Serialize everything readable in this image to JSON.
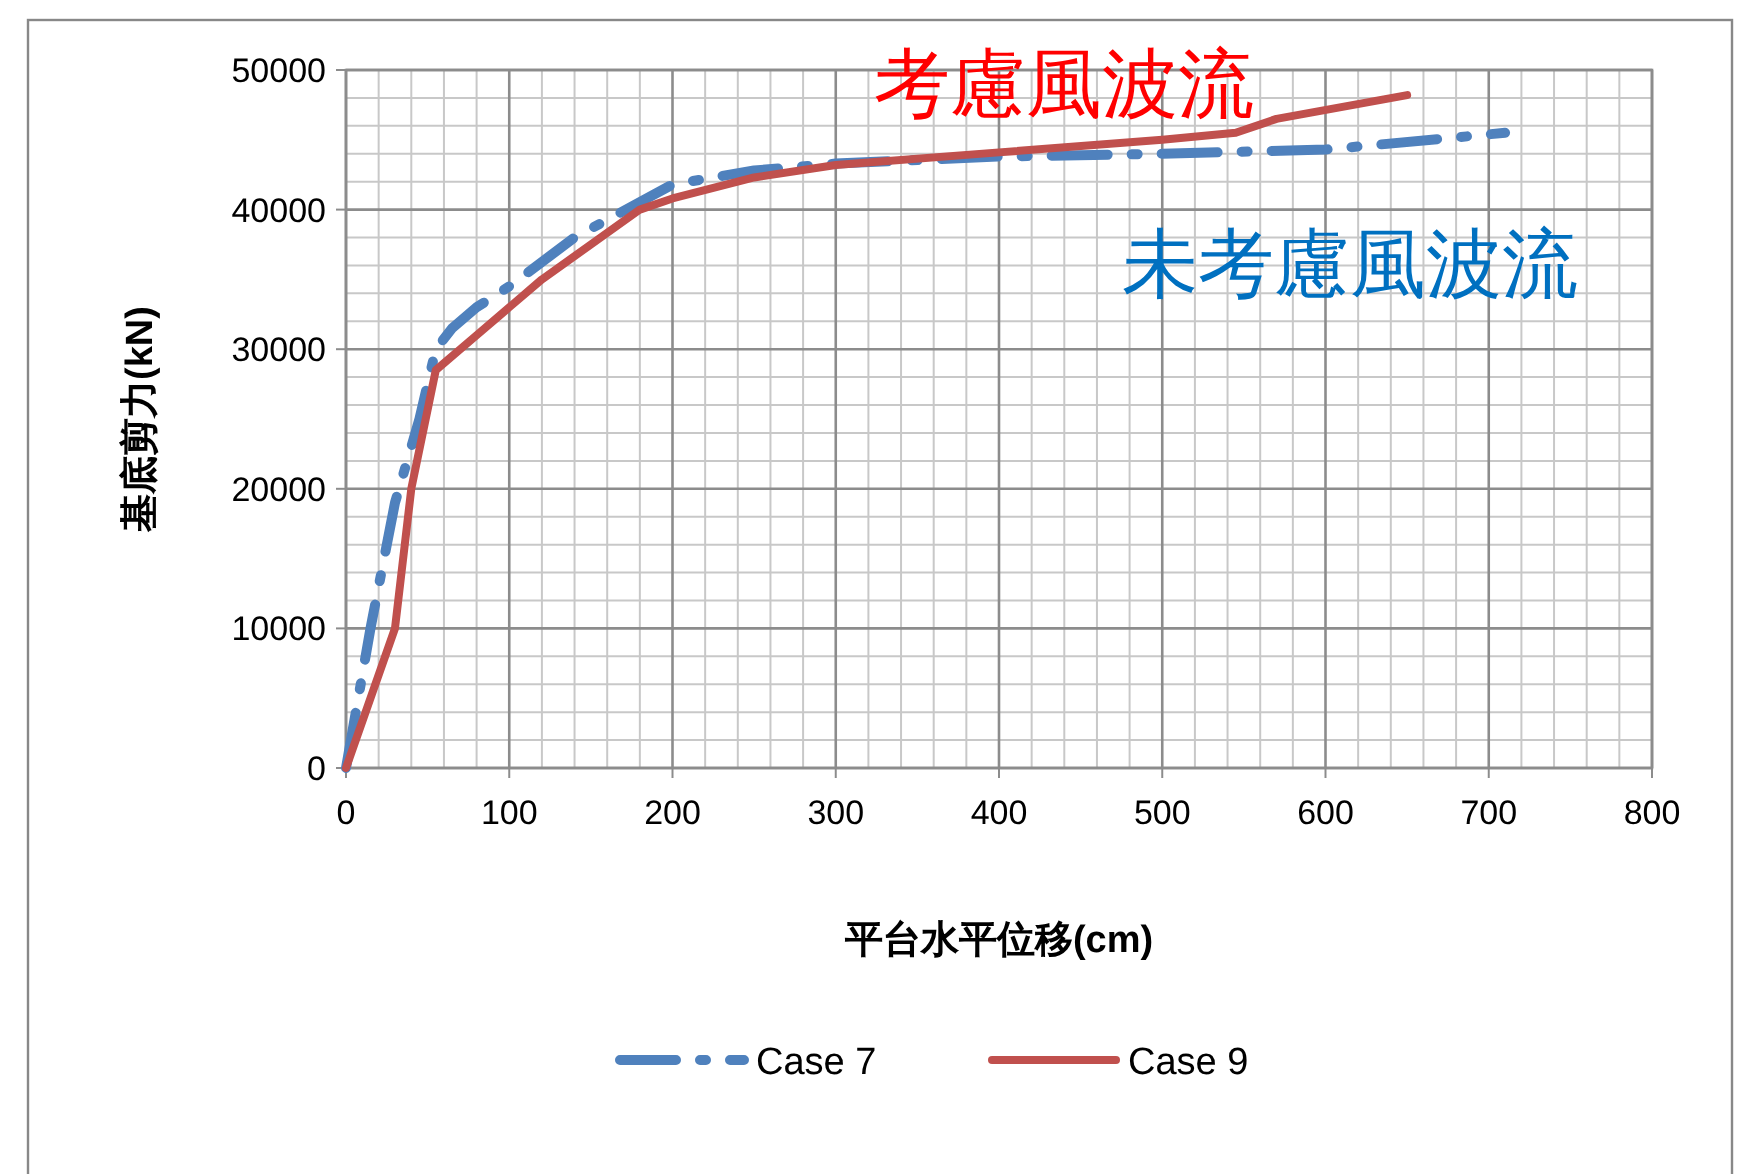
{
  "chart_data": {
    "type": "line",
    "xlabel": "平台水平位移(cm)",
    "ylabel": "基底剪力(kN)",
    "xlim": [
      0,
      800
    ],
    "xticks": [
      0,
      100,
      200,
      300,
      400,
      500,
      600,
      700,
      800
    ],
    "ylim": [
      0,
      50000
    ],
    "yticks": [
      0,
      10000,
      20000,
      30000,
      40000,
      50000
    ],
    "grid": true,
    "legend": "bottom",
    "marker": "none",
    "series": [
      {
        "name": "Case 7",
        "color": "#4f81bd",
        "line_style": "dashed",
        "x": [
          0,
          15,
          30,
          45,
          55,
          65,
          80,
          100,
          140,
          200,
          250,
          300,
          400,
          500,
          600,
          710
        ],
        "values": [
          0,
          10000,
          19000,
          25000,
          30000,
          31500,
          33000,
          34500,
          38000,
          41800,
          42800,
          43300,
          43800,
          44000,
          44300,
          45500
        ]
      },
      {
        "name": "Case 9",
        "color": "#c0504d",
        "line_style": "solid",
        "x": [
          0,
          30,
          40,
          55,
          80,
          100,
          120,
          150,
          180,
          200,
          250,
          300,
          400,
          500,
          545,
          570,
          650
        ],
        "values": [
          0,
          10000,
          20000,
          28500,
          31000,
          33000,
          35000,
          37500,
          40000,
          40800,
          42300,
          43200,
          44100,
          45000,
          45500,
          46500,
          48200
        ]
      }
    ],
    "annotations": [
      "考慮風波流",
      "未考慮風波流"
    ]
  }
}
